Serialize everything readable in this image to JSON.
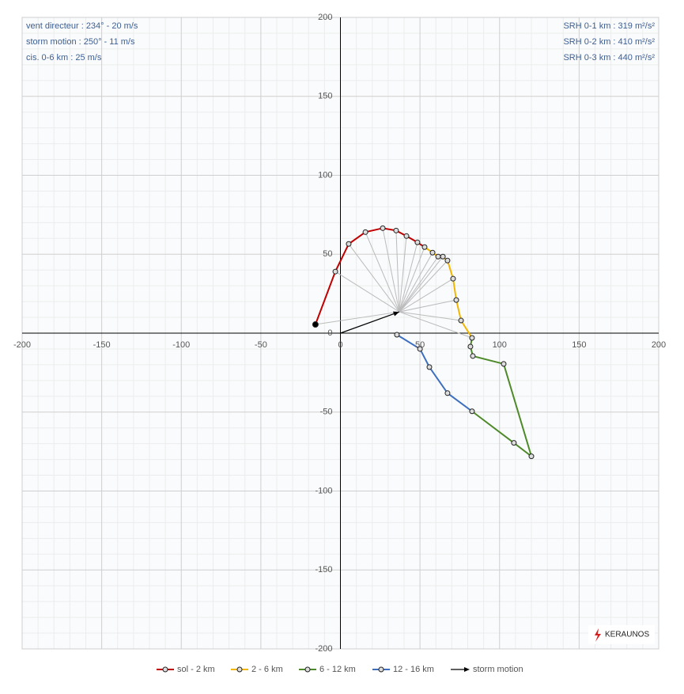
{
  "chart_data": {
    "type": "hodograph",
    "xlim": [
      -200,
      200
    ],
    "ylim": [
      -200,
      200
    ],
    "xticks": [
      -200,
      -150,
      -100,
      -50,
      0,
      50,
      100,
      150,
      200
    ],
    "yticks": [
      -200,
      -150,
      -100,
      -50,
      0,
      50,
      100,
      150,
      200
    ],
    "grid": true,
    "annotations_left": [
      "vent directeur : 234°  -  20 m/s",
      "storm motion : 250°  -  11 m/s",
      "cis. 0-6 km : 25 m/s"
    ],
    "annotations_right": [
      "SRH 0-1 km : 319 m²/s²",
      "SRH 0-2 km : 410 m²/s²",
      "SRH 0-3 km : 440 m²/s²"
    ],
    "series": [
      {
        "name": "sol - 2 km",
        "color": "#c00000",
        "x": [
          -15.7,
          -3.2,
          5.2,
          15.7,
          26.6,
          35,
          41.5,
          48.4,
          52.9
        ],
        "y": [
          5.5,
          39,
          56.5,
          64,
          66.5,
          65,
          61.5,
          57.5,
          54.5
        ]
      },
      {
        "name": "2 - 6 km",
        "color": "#f2b600",
        "x": [
          57.9,
          61.4,
          64.4,
          67.3,
          70.8,
          72.8,
          75.8,
          82.7
        ],
        "y": [
          51,
          48.5,
          48.5,
          46,
          34.5,
          21,
          8,
          -3
        ]
      },
      {
        "name": "6 - 12 km",
        "color": "#4f8a2a",
        "x": [
          81.7,
          83.2,
          102.6,
          120,
          109,
          82.7
        ],
        "y": [
          -8.5,
          -14.5,
          -19.5,
          -78,
          -69.5,
          -49.5
        ]
      },
      {
        "name": "12 - 16 km",
        "color": "#3c6fbf",
        "x": [
          67.3,
          55.9,
          50,
          35.5
        ],
        "y": [
          -38,
          -21.5,
          -10,
          -1
        ]
      }
    ],
    "storm_motion": {
      "name": "storm motion",
      "color": "#000000",
      "x": 37,
      "y": 13.5
    },
    "logo": "KERAUNOS"
  }
}
